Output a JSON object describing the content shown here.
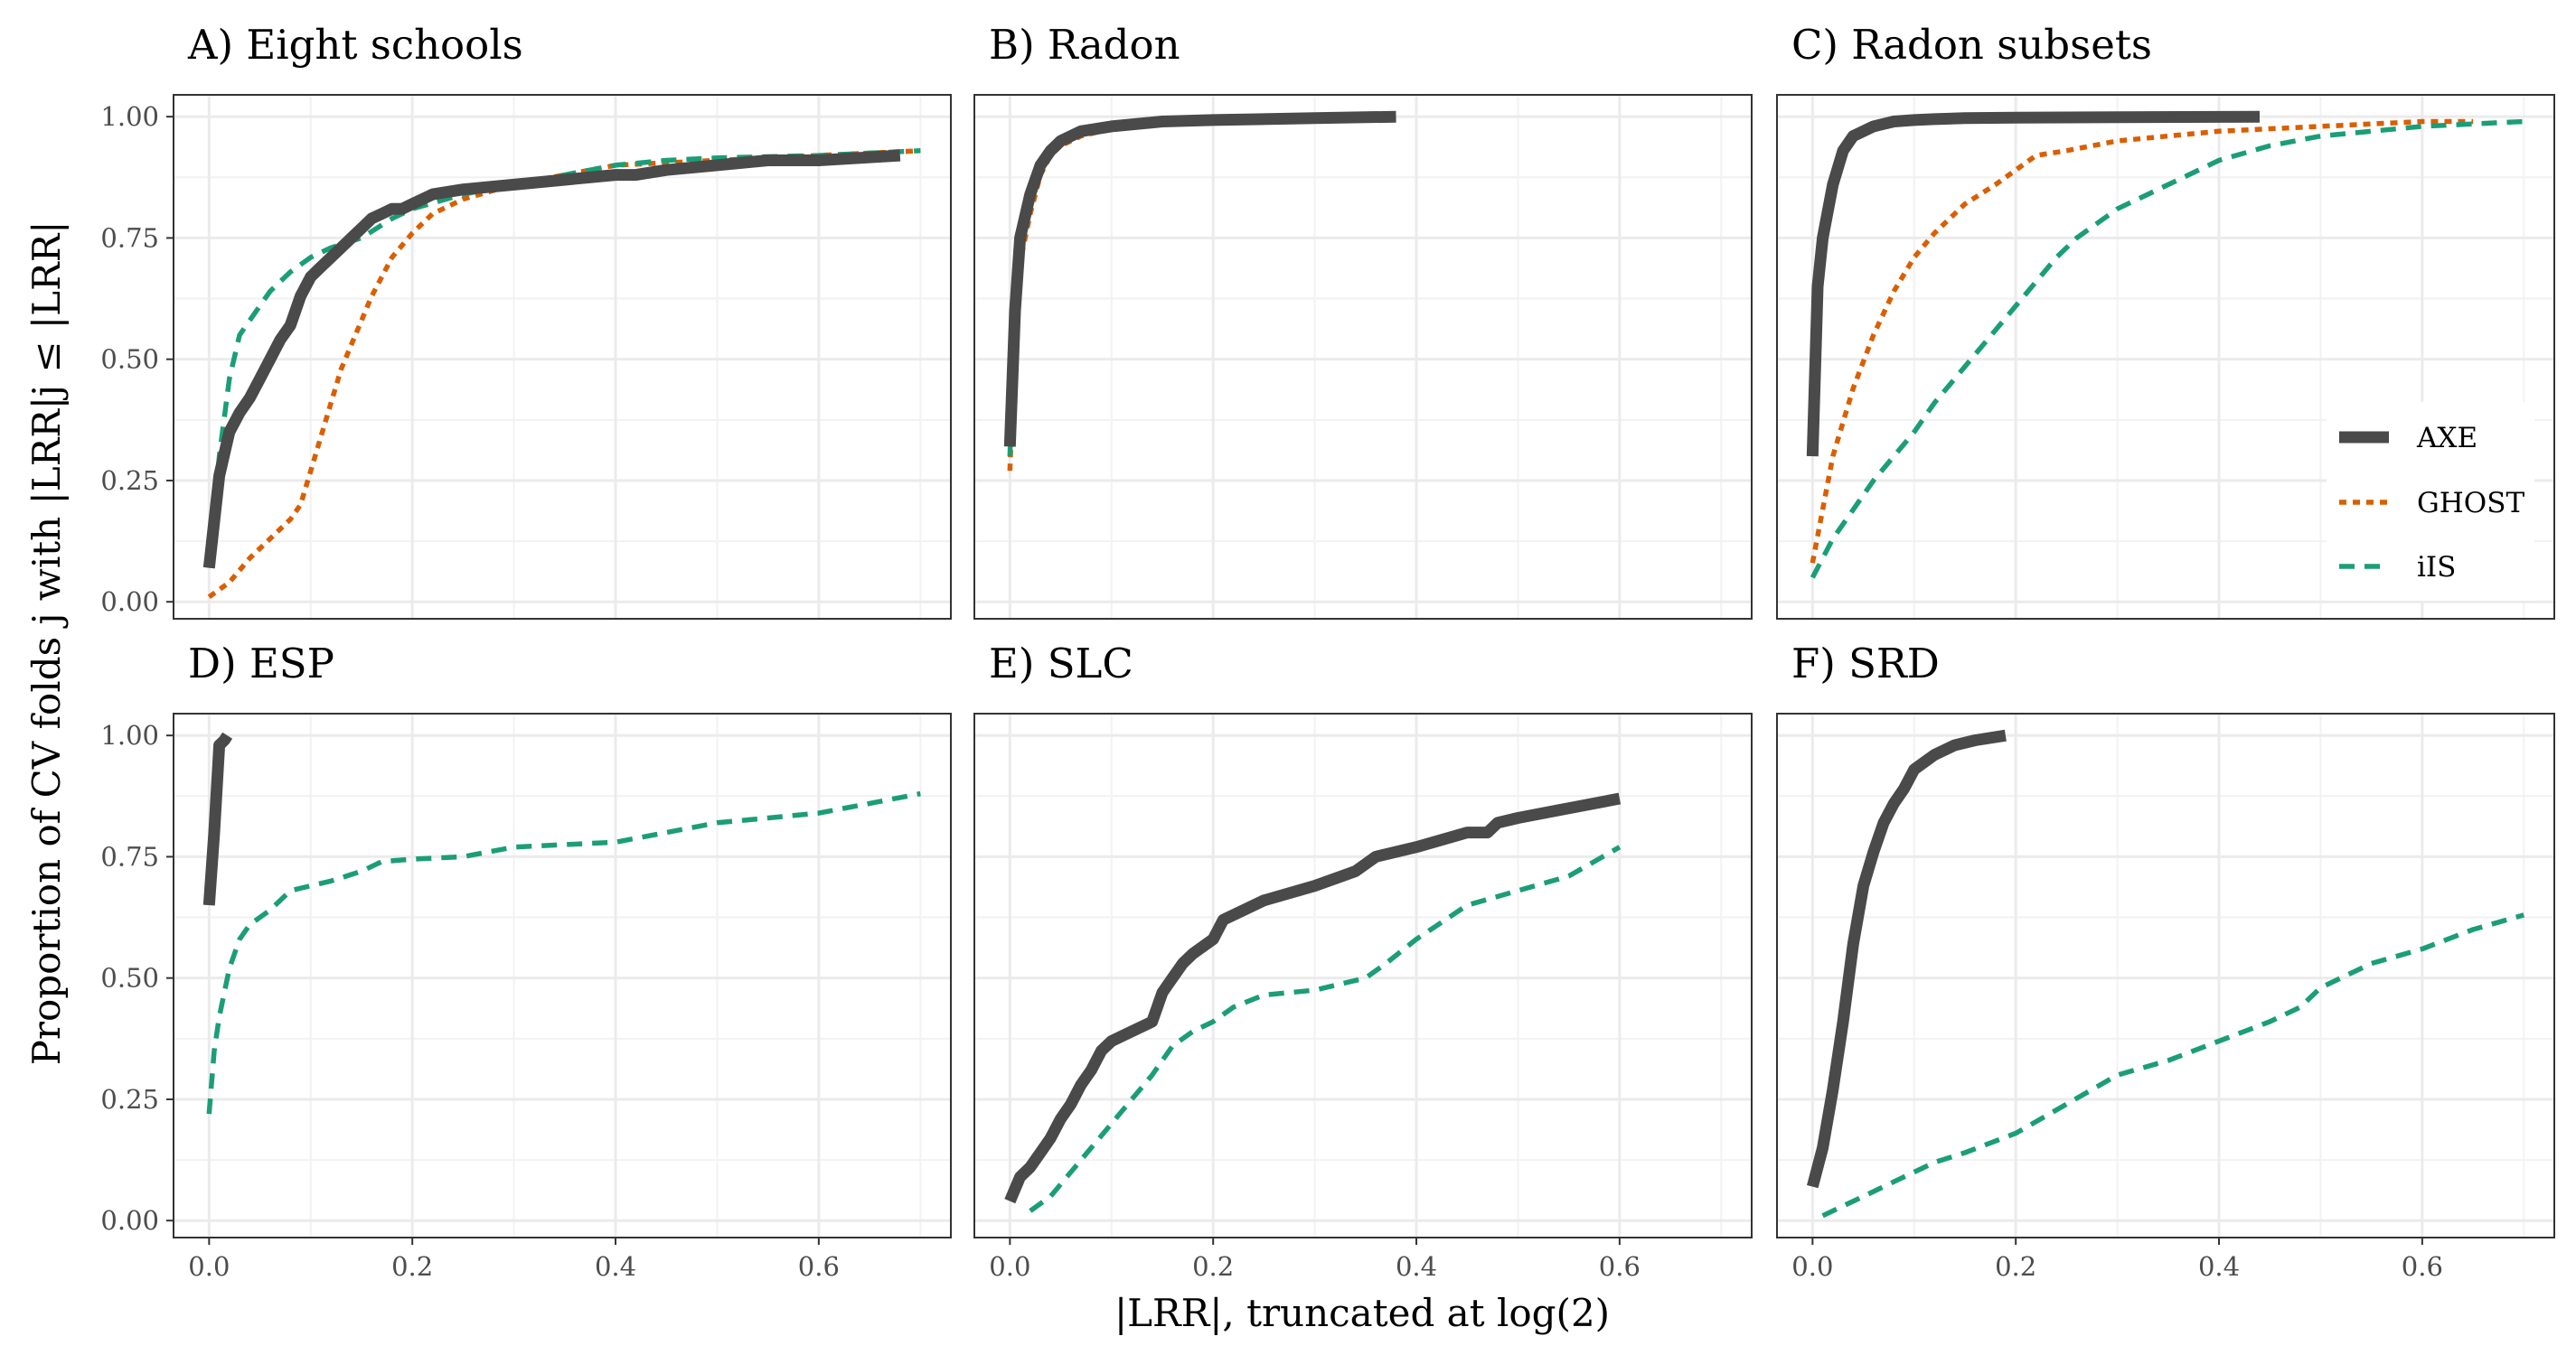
{
  "chart_data": {
    "type": "line",
    "ylabel": "Proportion of CV folds j with |LRR|j ≤ |LRR|",
    "xlabel": "|LRR|, truncated at log(2)",
    "xlim": [
      -0.035,
      0.73
    ],
    "ylim": [
      -0.035,
      1.045
    ],
    "x_ticks": [
      0.0,
      0.2,
      0.4,
      0.6
    ],
    "x_tick_labels": [
      "0.0",
      "0.2",
      "0.4",
      "0.6"
    ],
    "y_ticks": [
      0.0,
      0.25,
      0.5,
      0.75,
      1.0
    ],
    "y_tick_labels": [
      "0.00",
      "0.25",
      "0.50",
      "0.75",
      "1.00"
    ],
    "grid": true,
    "legend": {
      "position": "inside C panel, bottom-right",
      "entries": [
        {
          "name": "AXE",
          "color": "#4a4a4a",
          "style": "solid"
        },
        {
          "name": "GHOST",
          "color": "#d95f02",
          "style": "dotted"
        },
        {
          "name": "iIS",
          "color": "#1b9e77",
          "style": "dashed"
        }
      ]
    },
    "panels": [
      {
        "title": "A) Eight schools",
        "series": [
          {
            "name": "GHOST",
            "x": [
              0.0,
              0.02,
              0.04,
              0.06,
              0.08,
              0.09,
              0.1,
              0.11,
              0.12,
              0.13,
              0.14,
              0.15,
              0.16,
              0.17,
              0.18,
              0.2,
              0.22,
              0.25,
              0.3,
              0.35,
              0.4,
              0.5,
              0.6,
              0.7
            ],
            "y": [
              0.01,
              0.04,
              0.09,
              0.13,
              0.17,
              0.2,
              0.27,
              0.34,
              0.41,
              0.48,
              0.53,
              0.58,
              0.63,
              0.67,
              0.71,
              0.76,
              0.8,
              0.83,
              0.86,
              0.88,
              0.9,
              0.91,
              0.92,
              0.93
            ]
          },
          {
            "name": "iIS",
            "x": [
              0.0,
              0.01,
              0.02,
              0.03,
              0.04,
              0.06,
              0.08,
              0.1,
              0.12,
              0.15,
              0.18,
              0.2,
              0.25,
              0.3,
              0.35,
              0.4,
              0.45,
              0.5,
              0.6,
              0.7
            ],
            "y": [
              0.07,
              0.3,
              0.46,
              0.55,
              0.58,
              0.64,
              0.68,
              0.71,
              0.73,
              0.75,
              0.79,
              0.81,
              0.84,
              0.86,
              0.88,
              0.9,
              0.91,
              0.915,
              0.92,
              0.93
            ]
          },
          {
            "name": "AXE",
            "x": [
              0.0,
              0.01,
              0.02,
              0.03,
              0.04,
              0.05,
              0.06,
              0.07,
              0.08,
              0.09,
              0.1,
              0.11,
              0.12,
              0.13,
              0.14,
              0.15,
              0.16,
              0.17,
              0.18,
              0.19,
              0.2,
              0.21,
              0.22,
              0.25,
              0.3,
              0.35,
              0.4,
              0.42,
              0.45,
              0.5,
              0.55,
              0.6,
              0.68
            ],
            "y": [
              0.07,
              0.26,
              0.35,
              0.39,
              0.42,
              0.46,
              0.5,
              0.54,
              0.57,
              0.63,
              0.67,
              0.69,
              0.71,
              0.73,
              0.75,
              0.77,
              0.79,
              0.8,
              0.81,
              0.81,
              0.82,
              0.83,
              0.84,
              0.85,
              0.86,
              0.87,
              0.88,
              0.88,
              0.89,
              0.9,
              0.91,
              0.91,
              0.92
            ]
          }
        ]
      },
      {
        "title": "B) Radon",
        "series": [
          {
            "name": "GHOST",
            "x": [
              0.0,
              0.005,
              0.01,
              0.02,
              0.03,
              0.04,
              0.05,
              0.07,
              0.1,
              0.15,
              0.2,
              0.3,
              0.38
            ],
            "y": [
              0.27,
              0.55,
              0.7,
              0.8,
              0.88,
              0.92,
              0.94,
              0.96,
              0.975,
              0.985,
              0.99,
              0.995,
              1.0
            ]
          },
          {
            "name": "iIS",
            "x": [
              0.0,
              0.005,
              0.01,
              0.02,
              0.03,
              0.04,
              0.05,
              0.07,
              0.1,
              0.15,
              0.2,
              0.3,
              0.38
            ],
            "y": [
              0.3,
              0.58,
              0.73,
              0.83,
              0.89,
              0.93,
              0.95,
              0.97,
              0.98,
              0.99,
              0.993,
              0.997,
              1.0
            ]
          },
          {
            "name": "AXE",
            "x": [
              0.0,
              0.005,
              0.01,
              0.02,
              0.03,
              0.04,
              0.05,
              0.07,
              0.1,
              0.15,
              0.2,
              0.3,
              0.38
            ],
            "y": [
              0.32,
              0.6,
              0.75,
              0.84,
              0.9,
              0.93,
              0.95,
              0.97,
              0.98,
              0.99,
              0.993,
              0.997,
              1.0
            ]
          }
        ]
      },
      {
        "title": "C) Radon subsets",
        "series": [
          {
            "name": "GHOST",
            "x": [
              0.0,
              0.02,
              0.04,
              0.06,
              0.08,
              0.1,
              0.12,
              0.15,
              0.18,
              0.2,
              0.22,
              0.25,
              0.3,
              0.35,
              0.4,
              0.5,
              0.6,
              0.65
            ],
            "y": [
              0.08,
              0.3,
              0.44,
              0.55,
              0.64,
              0.71,
              0.76,
              0.82,
              0.86,
              0.89,
              0.92,
              0.93,
              0.95,
              0.96,
              0.97,
              0.98,
              0.99,
              0.99
            ]
          },
          {
            "name": "iIS",
            "x": [
              0.0,
              0.02,
              0.04,
              0.06,
              0.08,
              0.1,
              0.12,
              0.14,
              0.16,
              0.18,
              0.2,
              0.22,
              0.24,
              0.26,
              0.28,
              0.3,
              0.35,
              0.4,
              0.45,
              0.5,
              0.55,
              0.6,
              0.7
            ],
            "y": [
              0.05,
              0.13,
              0.19,
              0.25,
              0.3,
              0.35,
              0.41,
              0.46,
              0.51,
              0.56,
              0.61,
              0.66,
              0.71,
              0.75,
              0.78,
              0.81,
              0.86,
              0.91,
              0.94,
              0.96,
              0.97,
              0.98,
              0.99
            ]
          },
          {
            "name": "AXE",
            "x": [
              0.0,
              0.005,
              0.01,
              0.02,
              0.03,
              0.04,
              0.05,
              0.06,
              0.07,
              0.08,
              0.1,
              0.12,
              0.15,
              0.2,
              0.3,
              0.44
            ],
            "y": [
              0.3,
              0.65,
              0.75,
              0.86,
              0.93,
              0.96,
              0.97,
              0.98,
              0.985,
              0.99,
              0.993,
              0.995,
              0.997,
              0.998,
              0.999,
              1.0
            ]
          }
        ]
      },
      {
        "title": "D) ESP",
        "series": [
          {
            "name": "iIS",
            "x": [
              0.0,
              0.005,
              0.01,
              0.02,
              0.03,
              0.04,
              0.06,
              0.08,
              0.1,
              0.12,
              0.15,
              0.17,
              0.2,
              0.25,
              0.3,
              0.35,
              0.4,
              0.45,
              0.5,
              0.55,
              0.6,
              0.65,
              0.7
            ],
            "y": [
              0.22,
              0.35,
              0.42,
              0.52,
              0.58,
              0.61,
              0.64,
              0.68,
              0.69,
              0.7,
              0.72,
              0.74,
              0.745,
              0.75,
              0.77,
              0.775,
              0.78,
              0.8,
              0.82,
              0.83,
              0.84,
              0.86,
              0.88
            ]
          },
          {
            "name": "AXE",
            "x": [
              0.0,
              0.005,
              0.01,
              0.015,
              0.018
            ],
            "y": [
              0.65,
              0.8,
              0.98,
              0.99,
              1.0
            ]
          }
        ]
      },
      {
        "title": "E) SLC",
        "series": [
          {
            "name": "iIS",
            "x": [
              0.02,
              0.04,
              0.06,
              0.08,
              0.1,
              0.12,
              0.14,
              0.16,
              0.18,
              0.2,
              0.22,
              0.25,
              0.3,
              0.35,
              0.37,
              0.4,
              0.45,
              0.5,
              0.55,
              0.6
            ],
            "y": [
              0.02,
              0.05,
              0.1,
              0.15,
              0.2,
              0.25,
              0.3,
              0.36,
              0.39,
              0.41,
              0.44,
              0.465,
              0.475,
              0.5,
              0.53,
              0.58,
              0.65,
              0.68,
              0.71,
              0.77
            ]
          },
          {
            "name": "AXE",
            "x": [
              0.0,
              0.01,
              0.02,
              0.03,
              0.04,
              0.05,
              0.06,
              0.07,
              0.08,
              0.09,
              0.1,
              0.12,
              0.14,
              0.15,
              0.16,
              0.17,
              0.18,
              0.2,
              0.21,
              0.22,
              0.24,
              0.25,
              0.3,
              0.34,
              0.36,
              0.4,
              0.45,
              0.47,
              0.48,
              0.5,
              0.55,
              0.6
            ],
            "y": [
              0.04,
              0.09,
              0.11,
              0.14,
              0.17,
              0.21,
              0.24,
              0.28,
              0.31,
              0.35,
              0.37,
              0.39,
              0.41,
              0.47,
              0.5,
              0.53,
              0.55,
              0.58,
              0.62,
              0.63,
              0.65,
              0.66,
              0.69,
              0.72,
              0.75,
              0.77,
              0.8,
              0.8,
              0.82,
              0.83,
              0.85,
              0.87
            ]
          }
        ]
      },
      {
        "title": "F) SRD",
        "series": [
          {
            "name": "iIS",
            "x": [
              0.01,
              0.03,
              0.05,
              0.08,
              0.1,
              0.12,
              0.15,
              0.2,
              0.25,
              0.3,
              0.35,
              0.4,
              0.45,
              0.48,
              0.5,
              0.55,
              0.6,
              0.65,
              0.7
            ],
            "y": [
              0.01,
              0.03,
              0.05,
              0.08,
              0.1,
              0.12,
              0.14,
              0.18,
              0.24,
              0.3,
              0.33,
              0.37,
              0.41,
              0.44,
              0.48,
              0.53,
              0.56,
              0.6,
              0.63
            ]
          },
          {
            "name": "AXE",
            "x": [
              0.0,
              0.01,
              0.02,
              0.03,
              0.04,
              0.05,
              0.06,
              0.07,
              0.08,
              0.09,
              0.1,
              0.12,
              0.14,
              0.16,
              0.19
            ],
            "y": [
              0.07,
              0.15,
              0.27,
              0.41,
              0.57,
              0.69,
              0.76,
              0.82,
              0.86,
              0.89,
              0.93,
              0.96,
              0.98,
              0.99,
              1.0
            ]
          }
        ]
      }
    ]
  }
}
